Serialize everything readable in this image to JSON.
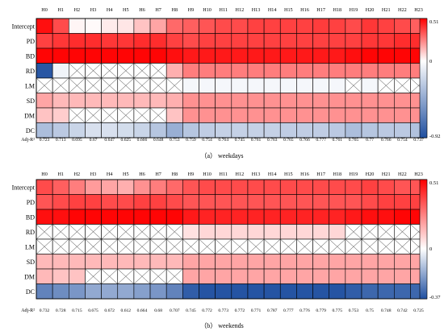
{
  "hours": [
    "H0",
    "H1",
    "H2",
    "H3",
    "H4",
    "H5",
    "H6",
    "H7",
    "H8",
    "H9",
    "H10",
    "H11",
    "H12",
    "H13",
    "H14",
    "H15",
    "H16",
    "H17",
    "H18",
    "H19",
    "H20",
    "H21",
    "H22",
    "H23"
  ],
  "rows": [
    "Intercept",
    "PD",
    "BD",
    "RD",
    "LM",
    "SD",
    "DM",
    "DC"
  ],
  "adj_label": "Adj-R²",
  "panels": [
    {
      "caption": "（a） weekdays",
      "scale_max": "0.51",
      "scale_zero": "0",
      "scale_min": "-0.92",
      "vmax": 0.51,
      "vmin": -0.92,
      "adj_r2": [
        "0.723",
        "0.713",
        "0.695",
        "0.67",
        "0.647",
        "0.625",
        "0.666",
        "0.648",
        "0.753",
        "0.759",
        "0.754",
        "0.764",
        "0.745",
        "0.761",
        "0.763",
        "0.765",
        "0.766",
        "0.777",
        "0.761",
        "0.765",
        "0.77",
        "0.766",
        "0.754",
        "0.737"
      ],
      "values": [
        [
          0.48,
          0.36,
          0.02,
          0.01,
          0.04,
          0.05,
          0.12,
          0.18,
          0.3,
          0.32,
          0.34,
          0.36,
          0.36,
          0.38,
          0.38,
          0.38,
          0.38,
          0.39,
          0.38,
          0.36,
          0.4,
          0.38,
          0.36,
          0.32
        ],
        [
          0.38,
          0.4,
          0.42,
          0.42,
          0.4,
          0.4,
          0.42,
          0.42,
          0.38,
          0.36,
          0.38,
          0.38,
          0.38,
          0.38,
          0.38,
          0.38,
          0.38,
          0.38,
          0.38,
          0.38,
          0.4,
          0.4,
          0.42,
          0.42
        ],
        [
          0.5,
          0.5,
          0.5,
          0.5,
          0.5,
          0.5,
          0.5,
          0.5,
          0.48,
          0.46,
          0.46,
          0.46,
          0.46,
          0.46,
          0.46,
          0.46,
          0.46,
          0.46,
          0.46,
          0.48,
          0.5,
          0.5,
          0.5,
          0.5
        ],
        [
          -0.88,
          -0.06,
          null,
          null,
          null,
          null,
          null,
          null,
          0.16,
          0.26,
          0.26,
          0.26,
          0.26,
          0.26,
          0.26,
          0.26,
          0.26,
          0.26,
          0.26,
          0.26,
          0.26,
          0.26,
          0.26,
          0.26
        ],
        [
          null,
          null,
          null,
          null,
          null,
          null,
          null,
          null,
          null,
          -0.04,
          -0.04,
          -0.04,
          -0.04,
          -0.04,
          -0.04,
          -0.04,
          -0.04,
          -0.04,
          -0.04,
          null,
          -0.04,
          null,
          null,
          null
        ],
        [
          0.18,
          0.14,
          0.14,
          0.14,
          0.14,
          0.14,
          0.14,
          0.14,
          0.16,
          0.22,
          0.22,
          0.22,
          0.22,
          0.22,
          0.22,
          0.22,
          0.22,
          0.22,
          0.22,
          0.22,
          0.22,
          0.22,
          0.22,
          0.22
        ],
        [
          0.12,
          0.1,
          null,
          null,
          null,
          null,
          null,
          null,
          0.12,
          0.22,
          0.22,
          0.22,
          0.22,
          0.22,
          0.22,
          0.22,
          0.22,
          0.22,
          0.22,
          0.22,
          0.22,
          0.22,
          0.22,
          0.22
        ],
        [
          -0.34,
          -0.28,
          -0.22,
          -0.16,
          -0.16,
          -0.18,
          -0.22,
          -0.3,
          -0.42,
          -0.3,
          -0.26,
          -0.24,
          -0.24,
          -0.24,
          -0.24,
          -0.26,
          -0.26,
          -0.26,
          -0.28,
          -0.34,
          -0.3,
          -0.28,
          -0.28,
          -0.32
        ]
      ]
    },
    {
      "caption": "（b） weekends",
      "scale_max": "0.51",
      "scale_zero": "0",
      "scale_min": "-0.37",
      "vmax": 0.51,
      "vmin": -0.37,
      "adj_r2": [
        "0.732",
        "0.728",
        "0.715",
        "0.675",
        "0.672",
        "0.612",
        "0.664",
        "0.68",
        "0.707",
        "0.745",
        "0.772",
        "0.773",
        "0.772",
        "0.771",
        "0.787",
        "0.777",
        "0.776",
        "0.779",
        "0.775",
        "0.753",
        "0.75",
        "0.748",
        "0.742",
        "0.725"
      ],
      "values": [
        [
          0.36,
          0.32,
          0.26,
          0.2,
          0.18,
          0.16,
          0.22,
          0.26,
          0.3,
          0.34,
          0.36,
          0.36,
          0.36,
          0.36,
          0.36,
          0.36,
          0.36,
          0.36,
          0.36,
          0.36,
          0.38,
          0.36,
          0.34,
          0.34
        ],
        [
          0.34,
          0.36,
          0.38,
          0.38,
          0.36,
          0.36,
          0.38,
          0.38,
          0.36,
          0.34,
          0.34,
          0.34,
          0.34,
          0.34,
          0.34,
          0.34,
          0.34,
          0.34,
          0.34,
          0.34,
          0.36,
          0.38,
          0.38,
          0.38
        ],
        [
          0.48,
          0.48,
          0.5,
          0.5,
          0.5,
          0.5,
          0.5,
          0.5,
          0.5,
          0.46,
          0.44,
          0.44,
          0.44,
          0.44,
          0.44,
          0.44,
          0.44,
          0.44,
          0.44,
          0.46,
          0.48,
          0.48,
          0.5,
          0.5
        ],
        [
          null,
          null,
          null,
          null,
          null,
          null,
          null,
          null,
          null,
          0.06,
          0.08,
          0.08,
          0.08,
          0.08,
          0.08,
          0.08,
          0.08,
          0.08,
          0.08,
          null,
          null,
          null,
          null,
          null
        ],
        [
          null,
          null,
          null,
          null,
          null,
          null,
          null,
          null,
          null,
          null,
          null,
          null,
          null,
          null,
          null,
          null,
          null,
          null,
          null,
          null,
          null,
          null,
          null,
          null
        ],
        [
          0.14,
          0.14,
          0.14,
          0.14,
          0.14,
          0.14,
          0.14,
          0.14,
          0.14,
          0.18,
          0.18,
          0.18,
          0.18,
          0.18,
          0.18,
          0.18,
          0.18,
          0.18,
          0.18,
          0.18,
          0.18,
          0.18,
          0.18,
          0.18
        ],
        [
          0.14,
          0.12,
          0.12,
          null,
          null,
          null,
          null,
          null,
          null,
          0.18,
          0.18,
          0.18,
          0.18,
          0.18,
          0.18,
          0.18,
          0.18,
          0.18,
          0.18,
          0.18,
          0.18,
          0.18,
          0.18,
          0.18
        ],
        [
          -0.26,
          -0.24,
          -0.22,
          -0.18,
          -0.18,
          -0.18,
          -0.2,
          -0.22,
          -0.26,
          -0.34,
          -0.36,
          -0.36,
          -0.36,
          -0.36,
          -0.36,
          -0.36,
          -0.36,
          -0.36,
          -0.36,
          -0.34,
          -0.32,
          -0.32,
          -0.32,
          -0.32
        ]
      ]
    }
  ]
}
